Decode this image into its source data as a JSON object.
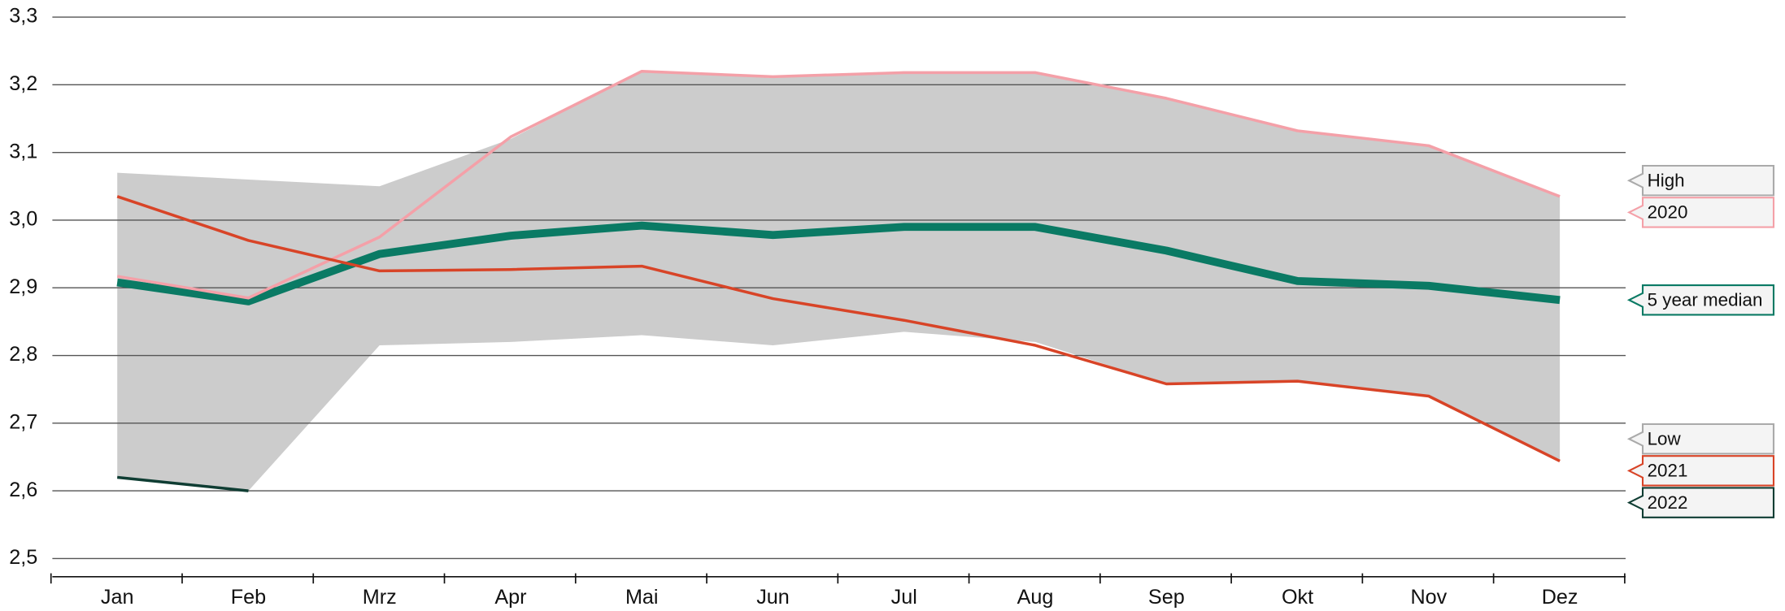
{
  "chart_data": {
    "type": "line",
    "categories": [
      "Jan",
      "Feb",
      "Mrz",
      "Apr",
      "Mai",
      "Jun",
      "Jul",
      "Aug",
      "Sep",
      "Okt",
      "Nov",
      "Dez"
    ],
    "ylim": [
      2.5,
      3.3
    ],
    "yticks": [
      {
        "value": 2.5,
        "label": "2,5"
      },
      {
        "value": 2.6,
        "label": "2,6"
      },
      {
        "value": 2.7,
        "label": "2,7"
      },
      {
        "value": 2.8,
        "label": "2,8"
      },
      {
        "value": 2.9,
        "label": "2,9"
      },
      {
        "value": 3.0,
        "label": "3,0"
      },
      {
        "value": 3.1,
        "label": "3,1"
      },
      {
        "value": 3.2,
        "label": "3,2"
      },
      {
        "value": 3.3,
        "label": "3,3"
      }
    ],
    "grid": true,
    "range_color": "#cccccc",
    "range": [
      {
        "name": "High",
        "color": "#aaaaaa",
        "values": [
          3.07,
          3.06,
          3.05,
          3.12,
          3.22,
          3.21,
          3.22,
          3.22,
          3.18,
          3.13,
          3.11,
          3.035
        ]
      },
      {
        "name": "Low",
        "color": "#aaaaaa",
        "values": [
          2.62,
          2.6,
          2.815,
          2.82,
          2.83,
          2.815,
          2.835,
          2.82,
          2.758,
          2.762,
          2.74,
          2.645
        ]
      }
    ],
    "series": [
      {
        "name": "2020",
        "color": "#f4a0a8",
        "line_width": 2.5,
        "values": [
          2.917,
          2.885,
          2.975,
          3.123,
          3.22,
          3.212,
          3.218,
          3.218,
          3.18,
          3.132,
          3.11,
          3.035
        ]
      },
      {
        "name": "5 year median",
        "color": "#0a7a64",
        "line_width": 7,
        "values": [
          2.908,
          2.88,
          2.95,
          2.977,
          2.992,
          2.978,
          2.99,
          2.99,
          2.955,
          2.91,
          2.903,
          2.882
        ]
      },
      {
        "name": "2021",
        "color": "#d84427",
        "line_width": 2.5,
        "values": [
          3.035,
          2.97,
          2.925,
          2.927,
          2.932,
          2.884,
          2.852,
          2.815,
          2.758,
          2.762,
          2.74,
          2.644
        ]
      },
      {
        "name": "2022",
        "color": "#0f3d33",
        "line_width": 2.5,
        "values": [
          2.62,
          2.6,
          null,
          null,
          null,
          null,
          null,
          null,
          null,
          null,
          null,
          null
        ]
      }
    ]
  }
}
